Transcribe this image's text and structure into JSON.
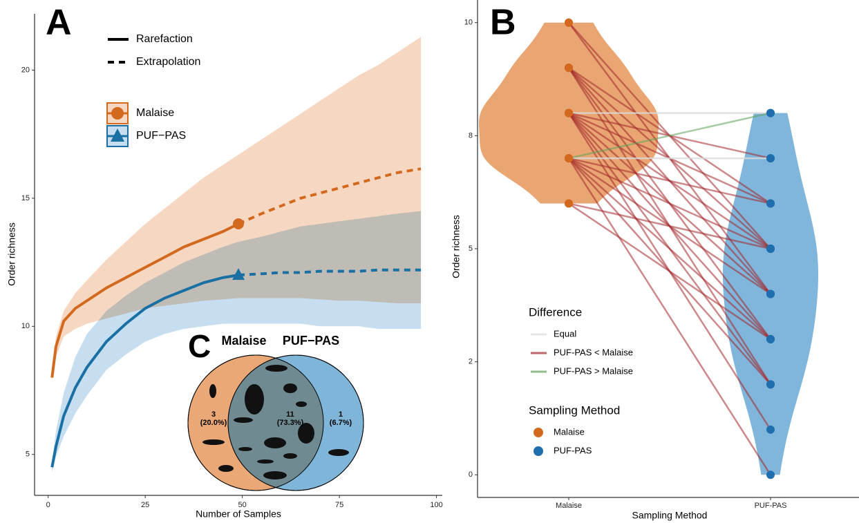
{
  "chart_data": [
    {
      "type": "rarefaction",
      "label": "A",
      "xlabel": "Number of Samples",
      "ylabel": "Order richness",
      "xlim": [
        -3.5,
        101.5
      ],
      "ylim": [
        3.4,
        22.2
      ],
      "xticks": [
        0,
        25,
        50,
        75,
        100
      ],
      "yticks": [
        5,
        10,
        15,
        20
      ],
      "linetype_legend": [
        "Rarefaction",
        "Extrapolation"
      ],
      "x": [
        1,
        2,
        4,
        7,
        10,
        15,
        20,
        25,
        30,
        35,
        40,
        45,
        49,
        55,
        60,
        65,
        70,
        75,
        80,
        85,
        90,
        96
      ],
      "series": [
        {
          "name": "Malaise",
          "color": "#d2691e",
          "band_color": "#f6d8c2",
          "marker": "circle",
          "values": [
            8.0,
            9.2,
            10.2,
            10.7,
            11.0,
            11.5,
            11.9,
            12.3,
            12.7,
            13.1,
            13.4,
            13.7,
            14.0,
            null,
            null,
            null,
            null,
            null,
            null,
            null,
            null,
            null
          ],
          "extrapolated": [
            null,
            null,
            null,
            null,
            null,
            null,
            null,
            null,
            null,
            null,
            null,
            null,
            14.0,
            14.4,
            14.7,
            15.0,
            15.2,
            15.4,
            15.6,
            15.8,
            16.0,
            16.15
          ],
          "lower": [
            7.9,
            8.8,
            9.6,
            9.9,
            10.1,
            10.3,
            10.5,
            10.7,
            10.8,
            10.9,
            11.0,
            11.05,
            11.1,
            11.1,
            11.1,
            11.1,
            11.05,
            11.0,
            11.0,
            10.95,
            10.9,
            10.9
          ],
          "upper": [
            8.1,
            9.6,
            10.6,
            11.3,
            11.8,
            12.6,
            13.3,
            14.0,
            14.6,
            15.2,
            15.8,
            16.3,
            16.7,
            17.3,
            17.8,
            18.3,
            18.8,
            19.3,
            19.8,
            20.2,
            20.7,
            21.3
          ]
        },
        {
          "name": "PUF−PAS",
          "color": "#1a6fa3",
          "band_color": "#c6deef",
          "marker": "triangle",
          "values": [
            4.5,
            5.3,
            6.5,
            7.6,
            8.4,
            9.4,
            10.1,
            10.7,
            11.1,
            11.4,
            11.7,
            11.9,
            12.0,
            null,
            null,
            null,
            null,
            null,
            null,
            null,
            null,
            null
          ],
          "extrapolated": [
            null,
            null,
            null,
            null,
            null,
            null,
            null,
            null,
            null,
            null,
            null,
            null,
            12.0,
            12.05,
            12.1,
            12.1,
            12.15,
            12.15,
            12.15,
            12.2,
            12.2,
            12.2
          ],
          "lower": [
            4.3,
            4.9,
            5.7,
            6.6,
            7.3,
            8.3,
            8.9,
            9.4,
            9.7,
            9.9,
            10.0,
            10.1,
            10.1,
            10.1,
            10.1,
            10.1,
            10.0,
            10.0,
            10.0,
            9.9,
            9.9,
            9.9
          ],
          "upper": [
            4.7,
            5.9,
            7.4,
            8.8,
            9.7,
            10.6,
            11.2,
            11.7,
            12.1,
            12.5,
            12.8,
            13.1,
            13.3,
            13.5,
            13.7,
            13.9,
            14.0,
            14.1,
            14.2,
            14.3,
            14.4,
            14.5
          ]
        }
      ]
    },
    {
      "type": "paired-violin",
      "label": "B",
      "xlabel": "Sampling Method",
      "ylabel": "Order richness",
      "ylim": [
        -0.5,
        10.5
      ],
      "yticks": [
        0,
        {
          "value": 2.5,
          "label": "2"
        },
        5,
        {
          "value": 7.5,
          "label": "8"
        },
        10
      ],
      "categories": [
        "Malaise",
        "PUF-PAS"
      ],
      "pairs": {
        "malaise": [
          10,
          10,
          9,
          9,
          9,
          9,
          9,
          8,
          8,
          8,
          8,
          8,
          8,
          8,
          8,
          7,
          7,
          7,
          7,
          7,
          7,
          7,
          7,
          6,
          6
        ],
        "puf_pas": [
          5,
          4,
          6,
          5,
          4,
          3,
          2,
          8,
          7,
          6,
          5,
          4,
          3,
          2,
          1,
          7,
          8,
          6,
          5,
          4,
          3,
          2,
          0,
          5,
          3
        ]
      },
      "difference_title": "Difference",
      "difference": [
        {
          "name": "Equal",
          "color": "#d9d9d9"
        },
        {
          "name": "PUF-PAS < Malaise",
          "color": "#a3262a"
        },
        {
          "name": "PUF-PAS > Malaise",
          "color": "#5fa35a"
        }
      ],
      "method_title": "Sampling Method",
      "methods": [
        {
          "name": "Malaise",
          "color": "#d2691e",
          "violin_color": "#e9a673"
        },
        {
          "name": "PUF-PAS",
          "color": "#1f6fb0",
          "violin_color": "#80b6db"
        }
      ]
    },
    {
      "type": "venn",
      "label": "C",
      "sets": [
        {
          "name": "Malaise",
          "color": "#e9a876"
        },
        {
          "name": "PUF−PAS",
          "color": "#80b5da"
        }
      ],
      "overlap_color": "#708a91",
      "values": [
        3,
        11,
        1
      ],
      "percent_labels": [
        "(20.0%)",
        "(73.3%)",
        "(6.7%)"
      ]
    }
  ]
}
